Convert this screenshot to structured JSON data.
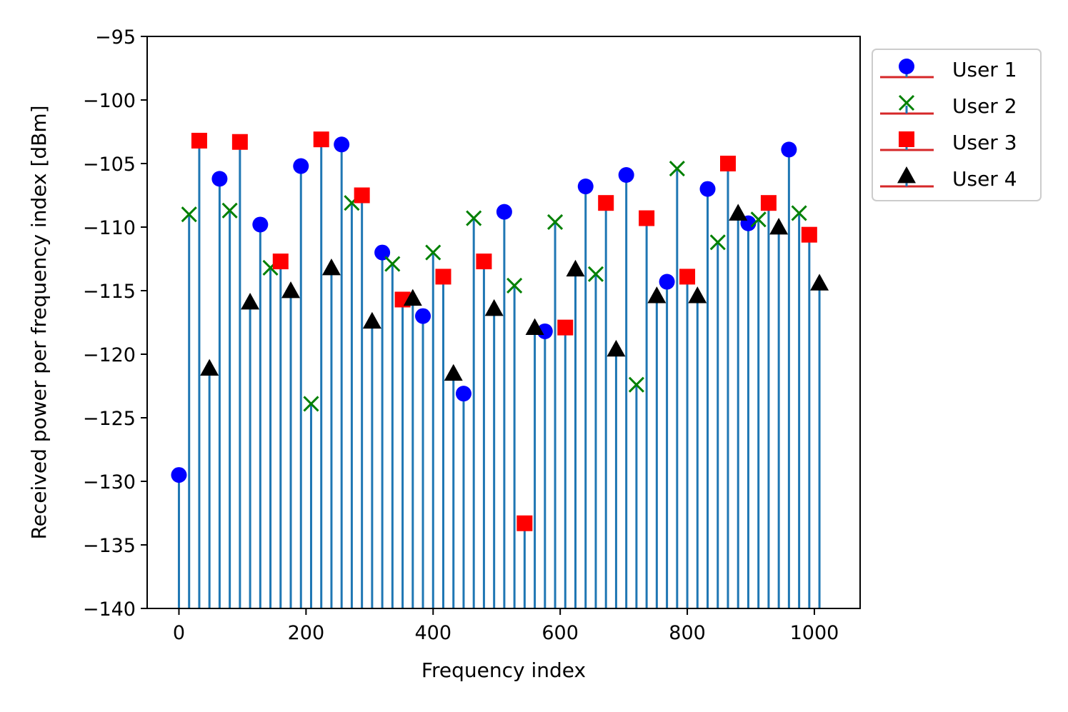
{
  "chart_data": {
    "type": "stem",
    "title": "",
    "xlabel": "Frequency index",
    "ylabel": "Received power per frequency index [dBm]",
    "xlim": [
      -50,
      1072
    ],
    "ylim": [
      -140,
      -95
    ],
    "xticks": [
      0,
      200,
      400,
      600,
      800,
      1000
    ],
    "yticks": [
      -95,
      -100,
      -105,
      -110,
      -115,
      -120,
      -125,
      -130,
      -135,
      -140
    ],
    "grid": false,
    "legend_placement": "outside-top-right",
    "stem_color": "#1f77b4",
    "baseline_color": "#d62728",
    "series": [
      {
        "name": "User 1",
        "marker": "circle",
        "color": "#0000ff",
        "x": [
          0,
          64,
          128,
          192,
          256,
          320,
          384,
          448,
          512,
          576,
          640,
          704,
          768,
          832,
          896,
          960
        ],
        "y": [
          -129.5,
          -106.2,
          -109.8,
          -105.2,
          -103.5,
          -112.0,
          -117.0,
          -123.1,
          -108.8,
          -118.2,
          -106.8,
          -105.9,
          -114.3,
          -107.0,
          -109.7,
          -103.9
        ]
      },
      {
        "name": "User 2",
        "marker": "x",
        "color": "#008000",
        "x": [
          16,
          80,
          144,
          208,
          272,
          336,
          400,
          464,
          528,
          592,
          656,
          720,
          784,
          848,
          912,
          976
        ],
        "y": [
          -109.0,
          -108.7,
          -113.2,
          -123.9,
          -108.1,
          -112.9,
          -112.0,
          -109.3,
          -114.6,
          -109.6,
          -113.7,
          -122.4,
          -105.4,
          -111.2,
          -109.4,
          -108.9
        ]
      },
      {
        "name": "User 3",
        "marker": "square",
        "color": "#ff0000",
        "x": [
          32,
          96,
          160,
          224,
          288,
          352,
          416,
          480,
          544,
          608,
          672,
          736,
          800,
          864,
          928,
          992
        ],
        "y": [
          -103.2,
          -103.3,
          -112.7,
          -103.1,
          -107.5,
          -115.7,
          -113.9,
          -112.7,
          -133.3,
          -117.9,
          -108.1,
          -109.3,
          -113.9,
          -105.0,
          -108.1,
          -110.6
        ]
      },
      {
        "name": "User 4",
        "marker": "triangle",
        "color": "#000000",
        "x": [
          48,
          112,
          176,
          240,
          304,
          368,
          432,
          496,
          560,
          624,
          688,
          752,
          816,
          880,
          944,
          1008
        ],
        "y": [
          -121.1,
          -115.9,
          -115.0,
          -113.2,
          -117.4,
          -115.6,
          -121.5,
          -116.4,
          -117.9,
          -113.3,
          -119.6,
          -115.4,
          -115.4,
          -108.9,
          -110.0,
          -114.4
        ]
      }
    ]
  }
}
